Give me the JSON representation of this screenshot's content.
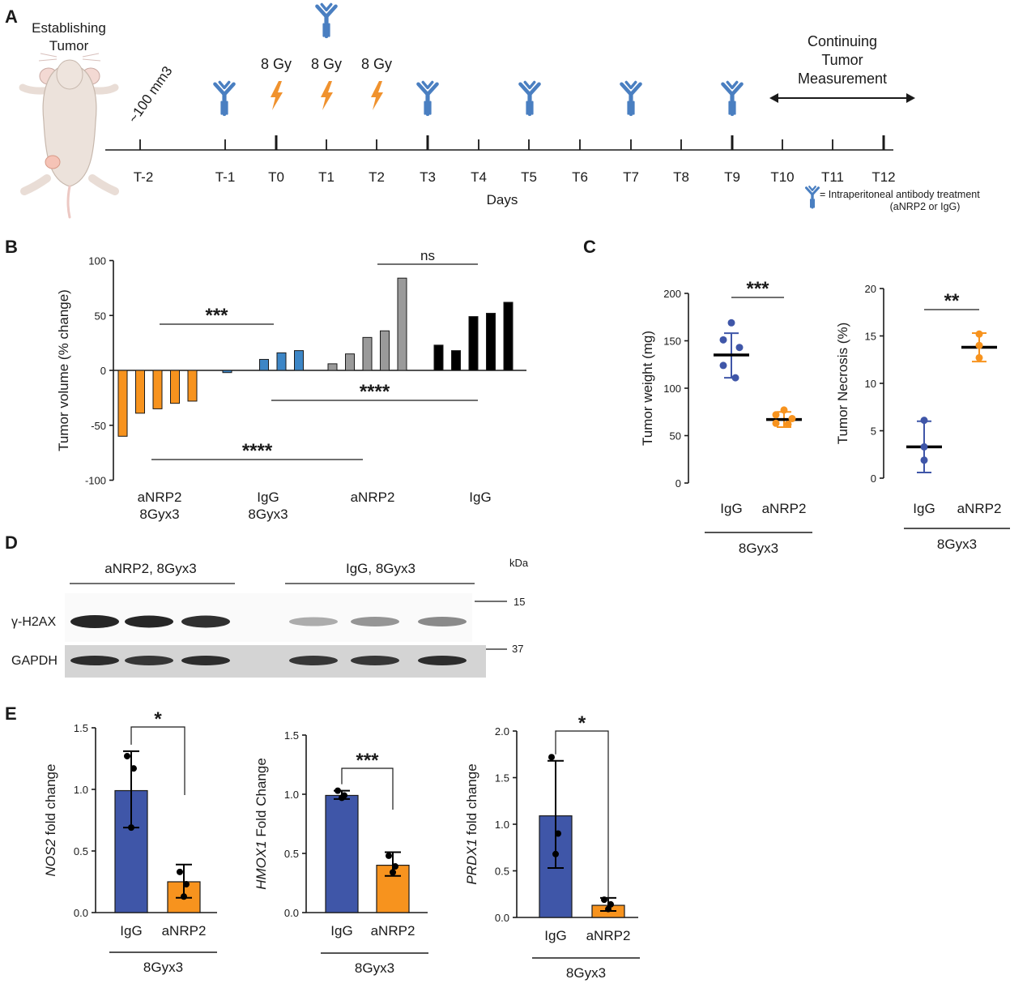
{
  "colors": {
    "antibody": "#4a7fc1",
    "lightning": "#f0922e",
    "blue_group": "#3f56a8",
    "orange_group": "#f7931e",
    "bar_orange": "#f7931e",
    "bar_blue": "#3d86c6",
    "bar_gray": "#9a9a9a",
    "bar_black": "#000000"
  },
  "panelA": {
    "label": "A",
    "mouse_label": [
      "Establishing",
      "Tumor"
    ],
    "size_label": "~100 mm3",
    "dose_labels": [
      "8 Gy",
      "8 Gy",
      "8 Gy"
    ],
    "measure_label": [
      "Continuing",
      "Tumor",
      "Measurement"
    ],
    "timepoints": [
      "T-2",
      "T-1",
      "T0",
      "T1",
      "T2",
      "T3",
      "T4",
      "T5",
      "T6",
      "T7",
      "T8",
      "T9",
      "T10",
      "T11",
      "T12"
    ],
    "days_label": "Days",
    "legend": [
      "= Intraperitoneal antibody treatment",
      "(aNRP2 or IgG)"
    ]
  },
  "panelB": {
    "label": "B",
    "chart_data": {
      "type": "bar",
      "ylabel": "Tumor volume (% change)",
      "ylim": [
        -100,
        100
      ],
      "yticks": [
        "100",
        "50",
        "0",
        "-50",
        "-100"
      ],
      "groups": [
        {
          "name": [
            "aNRP2",
            "8Gyx3"
          ],
          "color": "#f7931e",
          "values": [
            -60,
            -39,
            -35,
            -30,
            -28
          ]
        },
        {
          "name": [
            "IgG",
            "8Gyx3"
          ],
          "color": "#3d86c6",
          "values": [
            -2,
            10,
            16,
            18
          ]
        },
        {
          "name": [
            "aNRP2"
          ],
          "color": "#9a9a9a",
          "values": [
            6,
            15,
            30,
            36,
            84
          ]
        },
        {
          "name": [
            "IgG"
          ],
          "color": "#000000",
          "values": [
            23,
            18,
            49,
            52,
            62
          ]
        }
      ],
      "significance": [
        "***",
        "ns",
        "****",
        "****"
      ]
    }
  },
  "panelC": {
    "label": "C",
    "charts": [
      {
        "type": "scatter",
        "ylabel": "Tumor weight (mg)",
        "ylim": [
          0,
          200
        ],
        "yticks": [
          "200",
          "150",
          "100",
          "50",
          "0"
        ],
        "categories": [
          "IgG",
          "aNRP2"
        ],
        "group_label": "8Gyx3",
        "significance": "***",
        "series": [
          {
            "name": "IgG",
            "color": "#3f56a8",
            "points": [
              169,
              151,
              143,
              124,
              111
            ],
            "mean": 135,
            "sd_low": 111,
            "sd_high": 158
          },
          {
            "name": "aNRP2",
            "color": "#f7931e",
            "points": [
              77,
              72,
              68,
              63,
              62
            ],
            "mean": 67,
            "sd_low": 59,
            "sd_high": 75
          }
        ]
      },
      {
        "type": "scatter",
        "ylabel": "Tumor Necrosis (%)",
        "ylim": [
          0,
          20
        ],
        "yticks": [
          "20",
          "15",
          "10",
          "5",
          "0"
        ],
        "categories": [
          "IgG",
          "aNRP2"
        ],
        "group_label": "8Gyx3",
        "significance": "**",
        "series": [
          {
            "name": "IgG",
            "color": "#3f56a8",
            "points": [
              6.1,
              3.3,
              1.9
            ],
            "mean": 3.3,
            "sd_low": 0.6,
            "sd_high": 6.0
          },
          {
            "name": "aNRP2",
            "color": "#f7931e",
            "points": [
              15.2,
              14.0,
              12.7
            ],
            "mean": 13.8,
            "sd_low": 12.3,
            "sd_high": 15.3
          }
        ]
      }
    ]
  },
  "panelD": {
    "label": "D",
    "group_left": "aNRP2, 8Gyx3",
    "group_right": "IgG, 8Gyx3",
    "kda_label": "kDa",
    "rows": [
      {
        "name": "γ-H2AX",
        "marker": "15"
      },
      {
        "name": "GAPDH",
        "marker": "37"
      }
    ]
  },
  "panelE": {
    "label": "E",
    "charts": [
      {
        "type": "bar",
        "gene": "NOS2",
        "ylabel_rest": " fold change",
        "ylim": [
          0,
          1.5
        ],
        "yticks": [
          "1.5",
          "1.0",
          "0.5",
          "0.0"
        ],
        "categories": [
          "IgG",
          "aNRP2"
        ],
        "group_label": "8Gyx3",
        "significance": "*",
        "values": [
          0.99,
          0.25
        ],
        "err_low": [
          0.69,
          0.12
        ],
        "err_high": [
          1.31,
          0.39
        ],
        "points": [
          [
            1.27,
            1.17,
            0.69
          ],
          [
            0.33,
            0.23,
            0.13
          ]
        ]
      },
      {
        "type": "bar",
        "gene": "HMOX1",
        "ylabel_rest": " Fold Change",
        "ylim": [
          0,
          1.5
        ],
        "yticks": [
          "1.5",
          "1.0",
          "0.5",
          "0.0"
        ],
        "categories": [
          "IgG",
          "aNRP2"
        ],
        "group_label": "8Gyx3",
        "significance": "***",
        "values": [
          0.99,
          0.4
        ],
        "err_low": [
          0.96,
          0.31
        ],
        "err_high": [
          1.03,
          0.51
        ],
        "points": [
          [
            1.03,
            0.99,
            0.97
          ],
          [
            0.48,
            0.39,
            0.34
          ]
        ]
      },
      {
        "type": "bar",
        "gene": "PRDX1",
        "ylabel_rest": " fold change",
        "ylim": [
          0,
          2.0
        ],
        "yticks": [
          "2.0",
          "1.5",
          "1.0",
          "0.5",
          "0.0"
        ],
        "categories": [
          "IgG",
          "aNRP2"
        ],
        "group_label": "8Gyx3",
        "significance": "*",
        "values": [
          1.09,
          0.13
        ],
        "err_low": [
          0.53,
          0.07
        ],
        "err_high": [
          1.68,
          0.21
        ],
        "points": [
          [
            1.72,
            0.9,
            0.68
          ],
          [
            0.19,
            0.14,
            0.09
          ]
        ]
      }
    ]
  }
}
